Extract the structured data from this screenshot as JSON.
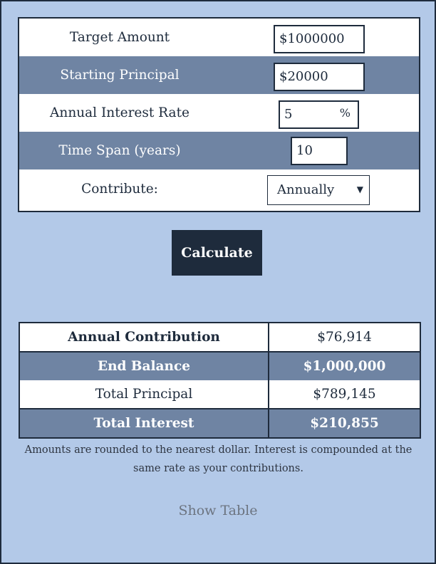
{
  "inputs": {
    "target_amount": {
      "label": "Target Amount",
      "value": "$1000000"
    },
    "starting_principal": {
      "label": "Starting Principal",
      "value": "$20000"
    },
    "interest_rate": {
      "label": "Annual Interest Rate",
      "value": "5",
      "unit": "%"
    },
    "time_span": {
      "label": "Time Span (years)",
      "value": "10"
    },
    "contribute": {
      "label": "Contribute:",
      "selected": "Annually"
    }
  },
  "calculate_label": "Calculate",
  "results": {
    "annual_contribution": {
      "label": "Annual Contribution",
      "value": "$76,914"
    },
    "end_balance": {
      "label": "End Balance",
      "value": "$1,000,000"
    },
    "total_principal": {
      "label": "Total Principal",
      "value": "$789,145"
    },
    "total_interest": {
      "label": "Total Interest",
      "value": "$210,855"
    }
  },
  "note": "Amounts are rounded to the nearest dollar. Interest is compounded at the same rate as your contributions.",
  "show_table_label": "Show Table",
  "colors": {
    "background": "#b3c9e8",
    "dark": "#1e2b3c",
    "band": "#6f84a3"
  }
}
